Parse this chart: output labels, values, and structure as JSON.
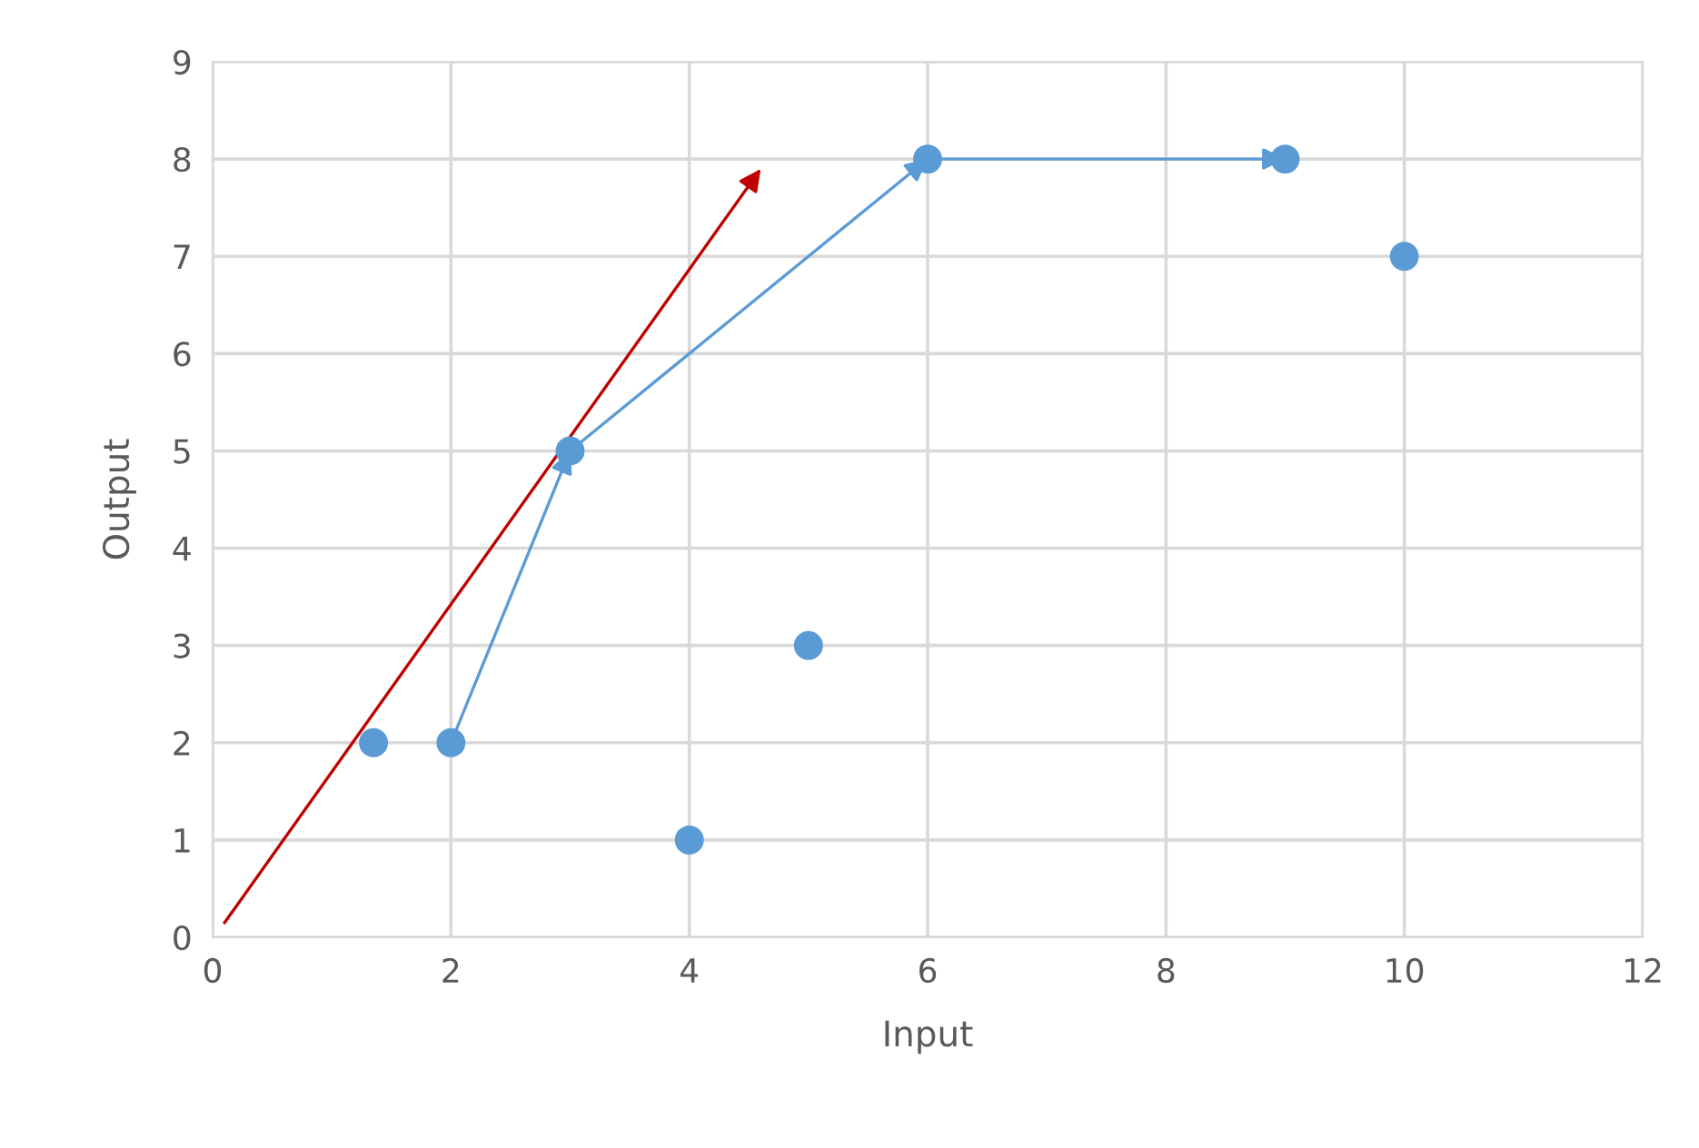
{
  "chart_data": {
    "type": "scatter",
    "xlabel": "Input",
    "ylabel": "Output",
    "xlim": [
      0,
      12
    ],
    "ylim": [
      0,
      9
    ],
    "xticks": [
      0,
      2,
      4,
      6,
      8,
      10,
      12
    ],
    "yticks": [
      0,
      1,
      2,
      3,
      4,
      5,
      6,
      7,
      8,
      9
    ],
    "grid": true,
    "legend": false,
    "series": [
      {
        "color": "#5b9bd5",
        "marker": "circle",
        "x": [
          1.35,
          2,
          3,
          4,
          5,
          6,
          9,
          10
        ],
        "values": [
          2,
          2,
          5,
          1,
          3,
          8,
          8,
          7
        ]
      },
      {
        "type": "line",
        "color": "#5b9bd5",
        "marker": "none",
        "line_style": "solid",
        "x": [
          2,
          3,
          6,
          9
        ],
        "values": [
          2,
          5,
          8,
          8
        ]
      },
      {
        "type": "line",
        "color": "#c00000",
        "marker": "none",
        "line_style": "solid",
        "x": [
          0.1,
          4.6
        ],
        "values": [
          0.15,
          7.9
        ]
      }
    ]
  }
}
